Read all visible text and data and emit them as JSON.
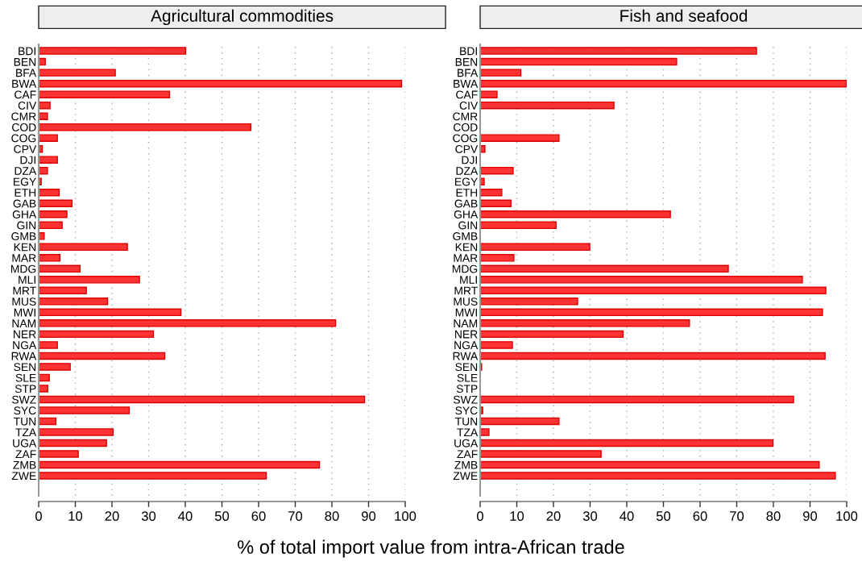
{
  "chart_data": [
    {
      "type": "bar",
      "orientation": "horizontal",
      "title": "Agricultural commodities",
      "xlabel": "% of total import value from intra-African trade",
      "categories": [
        "BDI",
        "BEN",
        "BFA",
        "BWA",
        "CAF",
        "CIV",
        "CMR",
        "COD",
        "COG",
        "CPV",
        "DJI",
        "DZA",
        "EGY",
        "ETH",
        "GAB",
        "GHA",
        "GIN",
        "GMB",
        "KEN",
        "MAR",
        "MDG",
        "MLI",
        "MRT",
        "MUS",
        "MWI",
        "NAM",
        "NER",
        "NGA",
        "RWA",
        "SEN",
        "SLE",
        "STP",
        "SWZ",
        "SYC",
        "TUN",
        "TZA",
        "UGA",
        "ZAF",
        "ZMB",
        "ZWE"
      ],
      "values": [
        40.1,
        1.8,
        20.9,
        99.0,
        35.7,
        3.1,
        2.4,
        57.9,
        5.1,
        1.0,
        5.1,
        2.4,
        0.7,
        5.6,
        9.1,
        7.7,
        6.4,
        1.5,
        24.2,
        5.8,
        11.3,
        27.5,
        13.0,
        18.8,
        38.8,
        81.0,
        31.3,
        5.1,
        34.4,
        8.6,
        2.9,
        2.5,
        88.9,
        24.7,
        4.7,
        20.3,
        18.5,
        10.8,
        76.6,
        62.1
      ],
      "color": "#ff3333",
      "xlim": [
        0,
        100
      ],
      "xticks": [
        0,
        10,
        20,
        30,
        40,
        50,
        60,
        70,
        80,
        90,
        100
      ],
      "grid": "x"
    },
    {
      "type": "bar",
      "orientation": "horizontal",
      "title": "Fish and seafood",
      "categories": [
        "BDI",
        "BEN",
        "BFA",
        "BWA",
        "CAF",
        "CIV",
        "CMR",
        "COD",
        "COG",
        "CPV",
        "DJI",
        "DZA",
        "EGY",
        "ETH",
        "GAB",
        "GHA",
        "GIN",
        "GMB",
        "KEN",
        "MAR",
        "MDG",
        "MLI",
        "MRT",
        "MUS",
        "MWI",
        "NAM",
        "NER",
        "NGA",
        "RWA",
        "SEN",
        "SLE",
        "STP",
        "SWZ",
        "SYC",
        "TUN",
        "TZA",
        "UGA",
        "ZAF",
        "ZMB",
        "ZWE"
      ],
      "values": [
        75.4,
        53.6,
        11.1,
        100,
        4.6,
        36.5,
        null,
        null,
        21.5,
        1.3,
        null,
        9.0,
        1.1,
        5.9,
        8.4,
        51.9,
        20.7,
        null,
        29.9,
        9.2,
        67.7,
        87.9,
        94.3,
        26.6,
        93.4,
        57.1,
        39.0,
        8.8,
        94.1,
        0.4,
        null,
        null,
        85.5,
        0.7,
        21.5,
        2.4,
        79.9,
        33.0,
        92.5,
        96.9
      ],
      "color": "#ff3333",
      "xlim": [
        0,
        100
      ],
      "xticks": [
        0,
        10,
        20,
        30,
        40,
        50,
        60,
        70,
        80,
        90,
        100
      ],
      "grid": "x"
    }
  ]
}
